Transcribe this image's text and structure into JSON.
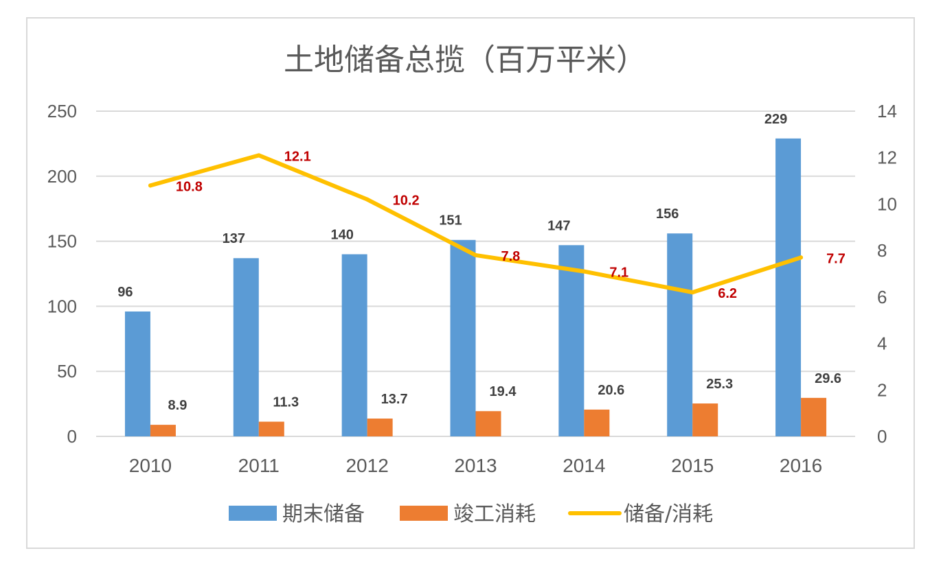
{
  "chart_data": {
    "type": "bar",
    "title": "土地储备总揽（百万平米）",
    "categories": [
      "2010",
      "2011",
      "2012",
      "2013",
      "2014",
      "2015",
      "2016"
    ],
    "series": [
      {
        "name": "期末储备",
        "type": "bar",
        "axis": "left",
        "color": "#5b9bd5",
        "values": [
          96,
          137,
          140,
          151,
          147,
          156,
          229
        ]
      },
      {
        "name": "竣工消耗",
        "type": "bar",
        "axis": "left",
        "color": "#ed7d31",
        "values": [
          8.9,
          11.3,
          13.7,
          19.4,
          20.6,
          25.3,
          29.6
        ]
      },
      {
        "name": "储备/消耗",
        "type": "line",
        "axis": "right",
        "color": "#ffc000",
        "label_color": "#c00000",
        "values": [
          10.8,
          12.1,
          10.2,
          7.8,
          7.1,
          6.2,
          7.7
        ]
      }
    ],
    "y_left": {
      "ylim": [
        0,
        250
      ],
      "ticks": [
        0,
        50,
        100,
        150,
        200,
        250
      ]
    },
    "y_right": {
      "ylim": [
        0,
        14
      ],
      "ticks": [
        0,
        2,
        4,
        6,
        8,
        10,
        12,
        14
      ]
    },
    "grid": true,
    "legend": "bottom",
    "xlabel": "",
    "ylabel": ""
  }
}
